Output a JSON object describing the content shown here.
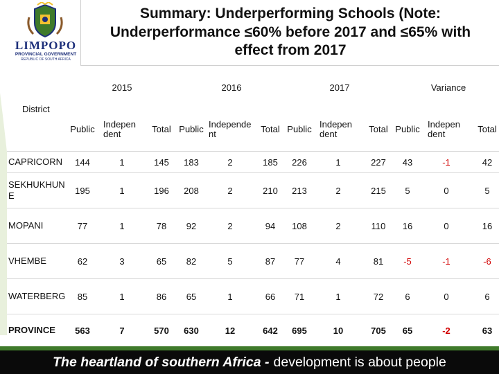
{
  "logo": {
    "wordmark": "LIMPOPO",
    "line1": "PROVINCIAL GOVERNMENT",
    "line2": "REPUBLIC OF SOUTH AFRICA"
  },
  "title": "Summary: Underperforming Schools (Note: Underperformance ≤60% before 2017 and ≤65% with effect from 2017",
  "table": {
    "district_header": "District",
    "years": [
      "2015",
      "2016",
      "2017",
      "Variance"
    ],
    "sub_headers": [
      "Public",
      "Independent",
      "Total"
    ],
    "rows": [
      {
        "district": "CAPRICORN",
        "values": [
          "144",
          "1",
          "145",
          "183",
          "2",
          "185",
          "226",
          "1",
          "227",
          "43",
          "-1",
          "42"
        ]
      },
      {
        "district": "SEKHUKHUNE",
        "values": [
          "195",
          "1",
          "196",
          "208",
          "2",
          "210",
          "213",
          "2",
          "215",
          "5",
          "0",
          "5"
        ]
      },
      {
        "district": "MOPANI",
        "values": [
          "77",
          "1",
          "78",
          "92",
          "2",
          "94",
          "108",
          "2",
          "110",
          "16",
          "0",
          "16"
        ]
      },
      {
        "district": "VHEMBE",
        "values": [
          "62",
          "3",
          "65",
          "82",
          "5",
          "87",
          "77",
          "4",
          "81",
          "-5",
          "-1",
          "-6"
        ]
      },
      {
        "district": "WATERBERG",
        "values": [
          "85",
          "1",
          "86",
          "65",
          "1",
          "66",
          "71",
          "1",
          "72",
          "6",
          "0",
          "6"
        ]
      },
      {
        "district": "PROVINCE",
        "values": [
          "563",
          "7",
          "570",
          "630",
          "12",
          "642",
          "695",
          "10",
          "705",
          "65",
          "-2",
          "63"
        ]
      }
    ]
  },
  "footer": {
    "strong": "The heartland of southern Africa -",
    "rest": "development is about people"
  },
  "colors": {
    "negative": "#d20000",
    "footer_bg": "#0a0a0a",
    "brand_blue": "#1d2f7a"
  }
}
